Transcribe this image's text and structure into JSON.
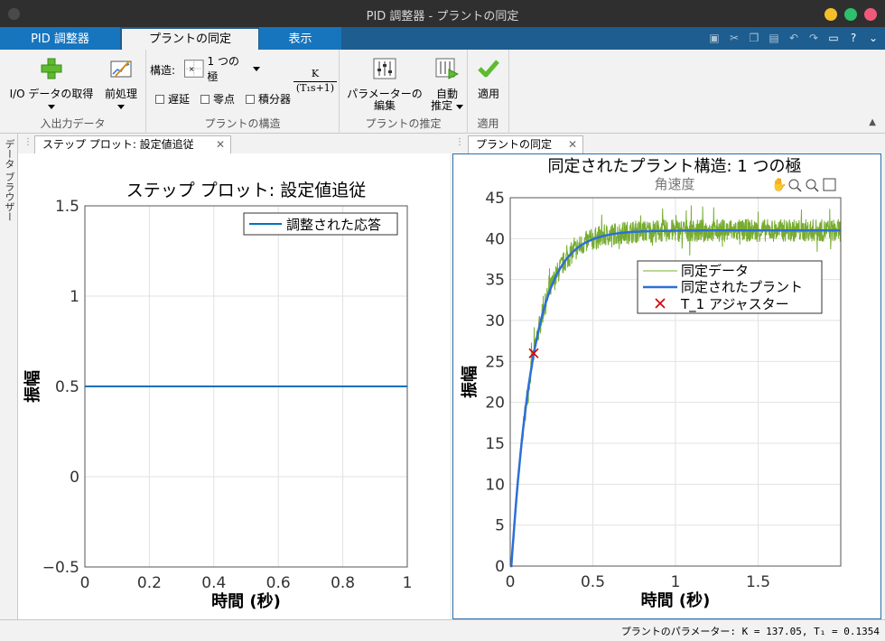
{
  "window": {
    "title": "PID 調整器 - プラントの同定"
  },
  "tabs": [
    {
      "label": "PID 調整器"
    },
    {
      "label": "プラントの同定"
    },
    {
      "label": "表示"
    }
  ],
  "toolstrip": {
    "io_data": {
      "label": "I/O データの取得",
      "caption": "入出力データ"
    },
    "preprocess": {
      "label": "前処理"
    },
    "structure": {
      "label": "構造:",
      "value": "1 つの極",
      "options": {
        "delay": "遅延",
        "zero": "零点",
        "integrator": "積分器"
      },
      "tf_numerator": "K",
      "tf_denominator": "(T₁s+1)",
      "caption": "プラントの構造"
    },
    "edit_params": {
      "line1": "パラメーターの",
      "line2": "編集"
    },
    "auto_estimate": {
      "line1": "自動",
      "line2": "推定"
    },
    "estimate_caption": "プラントの推定",
    "apply": {
      "label": "適用",
      "caption": "適用"
    }
  },
  "sidebar": {
    "label": "データ ブラウザー"
  },
  "left_panel": {
    "tab": "ステップ プロット: 設定値追従",
    "chart_data": {
      "type": "line",
      "title": "ステップ プロット: 設定値追従",
      "xlabel": "時間 (秒)",
      "ylabel": "振幅",
      "xlim": [
        0,
        1
      ],
      "ylim": [
        -0.5,
        1.5
      ],
      "xticks": [
        0,
        0.2,
        0.4,
        0.6,
        0.8,
        1
      ],
      "xtick_labels": [
        "0",
        "0.2",
        "0.4",
        "0.6",
        "0.8",
        "1"
      ],
      "yticks": [
        -0.5,
        0,
        0.5,
        1,
        1.5
      ],
      "ytick_labels": [
        "−0.5",
        "0",
        "0.5",
        "1",
        "1.5"
      ],
      "grid": true,
      "legend_position": "top-right",
      "series": [
        {
          "name": "調整された応答",
          "x": [
            0,
            1
          ],
          "y": [
            0.5,
            0.5
          ],
          "color": "#0072bd"
        }
      ]
    }
  },
  "right_panel": {
    "tab": "プラントの同定",
    "chart_data": {
      "type": "line",
      "title": "同定されたプラント構造: 1 つの極",
      "subtitle": "角速度",
      "xlabel": "時間 (秒)",
      "ylabel": "振幅",
      "xlim": [
        0,
        2
      ],
      "ylim": [
        0,
        45
      ],
      "xticks": [
        0,
        0.5,
        1,
        1.5
      ],
      "xtick_labels": [
        "0",
        "0.5",
        "1",
        "1.5"
      ],
      "yticks": [
        0,
        5,
        10,
        15,
        20,
        25,
        30,
        35,
        40,
        45
      ],
      "ytick_labels": [
        "0",
        "5",
        "10",
        "15",
        "20",
        "25",
        "30",
        "35",
        "40",
        "45"
      ],
      "grid": true,
      "legend_position": "top-right",
      "plant": {
        "K_over_T": 41,
        "T1": 0.1354,
        "start": 0.007
      },
      "series": [
        {
          "name": "同定データ",
          "style": "noisy",
          "noise_amplitude": 1.4,
          "color": "#77ac30"
        },
        {
          "name": "同定されたプラント",
          "style": "line",
          "color": "#2d6fd6"
        },
        {
          "name": "T_1 アジャスター",
          "style": "marker",
          "x": 0.142,
          "y": 26,
          "color": "#d00000"
        }
      ]
    }
  },
  "status": {
    "text": "プラントのパラメーター: K = 137.05, T₁ = 0.1354"
  }
}
